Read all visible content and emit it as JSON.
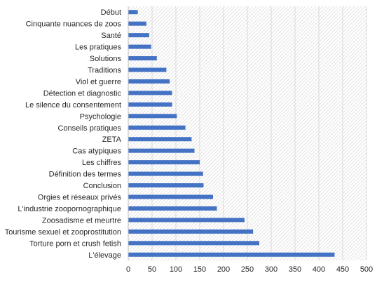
{
  "chart_data": {
    "type": "bar",
    "orientation": "horizontal",
    "categories": [
      "Début",
      "Cinquante nuances de zoos",
      "Santé",
      "Les pratiques",
      "Solutions",
      "Traditions",
      "Viol et guerre",
      "Détection et diagnostic",
      "Le silence du consentement",
      "Psychologie",
      "Conseils pratiques",
      "ZETA",
      "Cas atypiques",
      "Les chiffres",
      "Définition des termes",
      "Conclusion",
      "Orgies et réseaux privés",
      "L'industrie zoopornographique",
      "Zoosadisme et meurtre",
      "Tourisme sexuel et zooprostitution",
      "Torture porn et crush fetish",
      "L'élevage"
    ],
    "values": [
      20,
      38,
      44,
      48,
      60,
      80,
      87,
      92,
      92,
      102,
      120,
      133,
      139,
      150,
      157,
      158,
      178,
      186,
      244,
      262,
      275,
      433
    ],
    "xlim": [
      0,
      500
    ],
    "xticks": [
      0,
      50,
      100,
      150,
      200,
      250,
      300,
      350,
      400,
      450,
      500
    ],
    "grid": true,
    "bar_color": "#4472C4",
    "grid_color": "#D9D9D9",
    "label_color": "#262626"
  }
}
